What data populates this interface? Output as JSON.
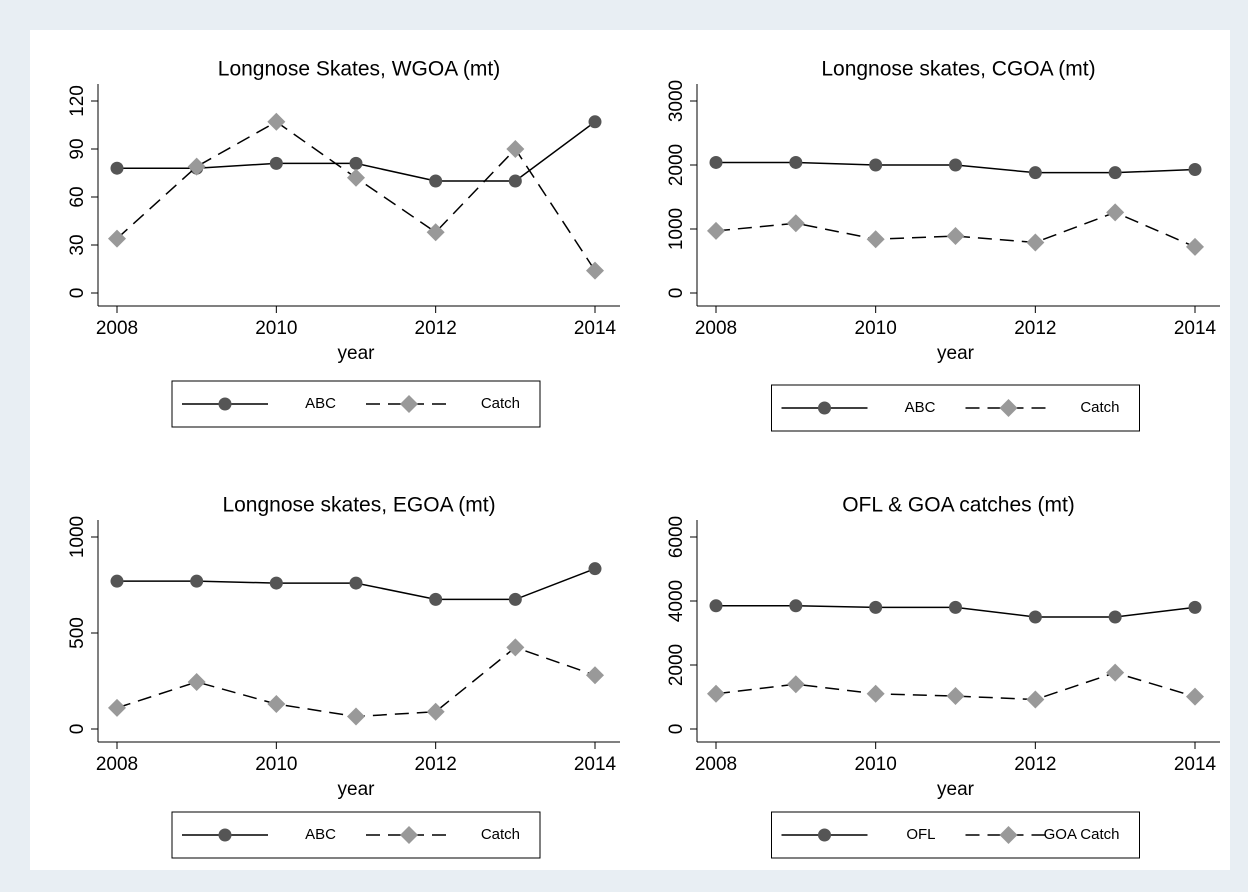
{
  "chart_data": [
    {
      "type": "line",
      "title": "Longnose Skates, WGOA (mt)",
      "x_label": "year",
      "x": [
        2008,
        2009,
        2010,
        2011,
        2012,
        2013,
        2014
      ],
      "xlim": [
        2008,
        2014
      ],
      "xticks": [
        2008,
        2010,
        2012,
        2014
      ],
      "ylim": [
        0,
        120
      ],
      "yticks": [
        0,
        30,
        60,
        90,
        120
      ],
      "series": [
        {
          "name": "ABC",
          "color": "#555555",
          "style": "solid",
          "marker": "circle",
          "values": [
            78,
            78,
            81,
            81,
            70,
            70,
            107
          ]
        },
        {
          "name": "Catch",
          "color": "#999999",
          "style": "dashed",
          "marker": "diamond",
          "values": [
            34,
            79,
            107,
            72,
            38,
            90,
            14
          ]
        }
      ]
    },
    {
      "type": "line",
      "title": "Longnose skates, CGOA (mt)",
      "x_label": "year",
      "x": [
        2008,
        2009,
        2010,
        2011,
        2012,
        2013,
        2014
      ],
      "xlim": [
        2008,
        2014
      ],
      "xticks": [
        2008,
        2010,
        2012,
        2014
      ],
      "ylim": [
        0,
        3000
      ],
      "yticks": [
        0,
        1000,
        2000,
        3000
      ],
      "series": [
        {
          "name": "ABC",
          "color": "#555555",
          "style": "solid",
          "marker": "circle",
          "values": [
            2040,
            2040,
            2000,
            2000,
            1880,
            1880,
            1930
          ]
        },
        {
          "name": "Catch",
          "color": "#999999",
          "style": "dashed",
          "marker": "diamond",
          "values": [
            970,
            1090,
            840,
            890,
            790,
            1260,
            720
          ]
        }
      ]
    },
    {
      "type": "line",
      "title": "Longnose skates, EGOA (mt)",
      "x_label": "year",
      "x": [
        2008,
        2009,
        2010,
        2011,
        2012,
        2013,
        2014
      ],
      "xlim": [
        2008,
        2014
      ],
      "xticks": [
        2008,
        2010,
        2012,
        2014
      ],
      "ylim": [
        0,
        1000
      ],
      "yticks": [
        0,
        500,
        1000
      ],
      "series": [
        {
          "name": "ABC",
          "color": "#555555",
          "style": "solid",
          "marker": "circle",
          "values": [
            770,
            770,
            760,
            760,
            675,
            675,
            835
          ]
        },
        {
          "name": "Catch",
          "color": "#999999",
          "style": "dashed",
          "marker": "diamond",
          "values": [
            110,
            245,
            130,
            65,
            90,
            425,
            280
          ]
        }
      ]
    },
    {
      "type": "line",
      "title": "OFL & GOA catches (mt)",
      "x_label": "year",
      "x": [
        2008,
        2009,
        2010,
        2011,
        2012,
        2013,
        2014
      ],
      "xlim": [
        2008,
        2014
      ],
      "xticks": [
        2008,
        2010,
        2012,
        2014
      ],
      "ylim": [
        0,
        6000
      ],
      "yticks": [
        0,
        2000,
        4000,
        6000
      ],
      "series": [
        {
          "name": "OFL",
          "color": "#555555",
          "style": "solid",
          "marker": "circle",
          "values": [
            3850,
            3850,
            3800,
            3800,
            3500,
            3500,
            3800
          ]
        },
        {
          "name": "GOA Catch",
          "color": "#999999",
          "style": "dashed",
          "marker": "diamond",
          "values": [
            1100,
            1400,
            1100,
            1030,
            920,
            1760,
            1010
          ]
        }
      ]
    }
  ]
}
